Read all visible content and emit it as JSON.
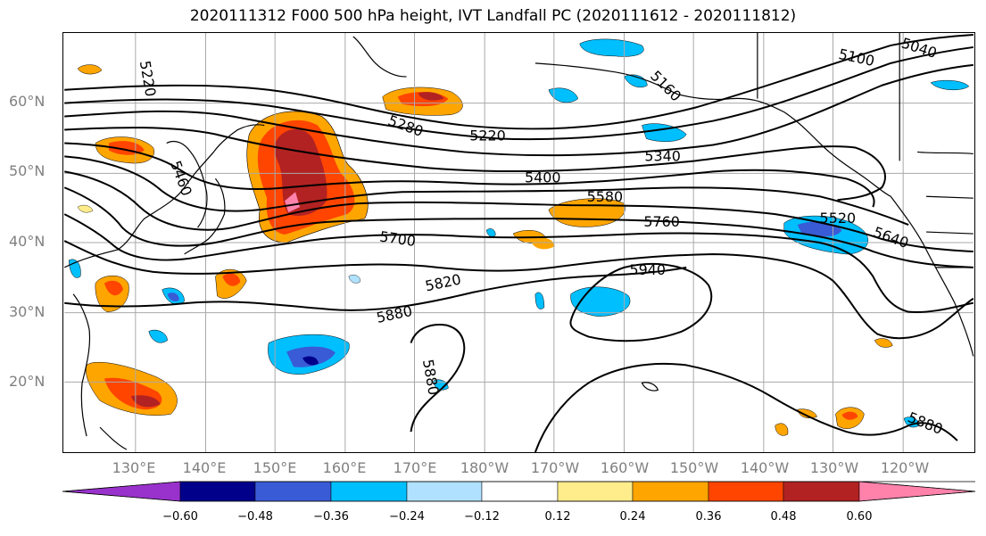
{
  "title": "2020111312 F000 500 hPa height, IVT Landfall PC (2020111612 - 2020111812)",
  "lat_labels": [
    "60°N",
    "50°N",
    "40°N",
    "30°N",
    "20°N"
  ],
  "lon_labels": [
    "130°E",
    "140°E",
    "150°E",
    "160°E",
    "170°E",
    "180°W",
    "170°W",
    "160°W",
    "150°W",
    "140°W",
    "130°W",
    "120°W"
  ],
  "contour_labels": {
    "c5220_w": "5220",
    "c5460": "5460",
    "c5280": "5280",
    "c5220": "5220",
    "c5160": "5160",
    "c5100": "5100",
    "c5040": "5040",
    "c5400": "5400",
    "c5340": "5340",
    "c5580": "5580",
    "c5520": "5520",
    "c5760": "5760",
    "c5640": "5640",
    "c5700": "5700",
    "c5820": "5820",
    "c5940": "5940",
    "c5880": "5880",
    "c5880_s": "5880",
    "c5880_se": "5880"
  },
  "colorbar": {
    "ticks": [
      "−0.60",
      "−0.48",
      "−0.36",
      "−0.24",
      "−0.12",
      "0.12",
      "0.24",
      "0.36",
      "0.48",
      "0.60"
    ],
    "colors": [
      "#9932cc",
      "#00008b",
      "#3a5bd6",
      "#00bfff",
      "#b0e2ff",
      "#ffffff",
      "#ffec8b",
      "#ffa500",
      "#ff4500",
      "#b22222",
      "#ff82ab"
    ]
  }
}
